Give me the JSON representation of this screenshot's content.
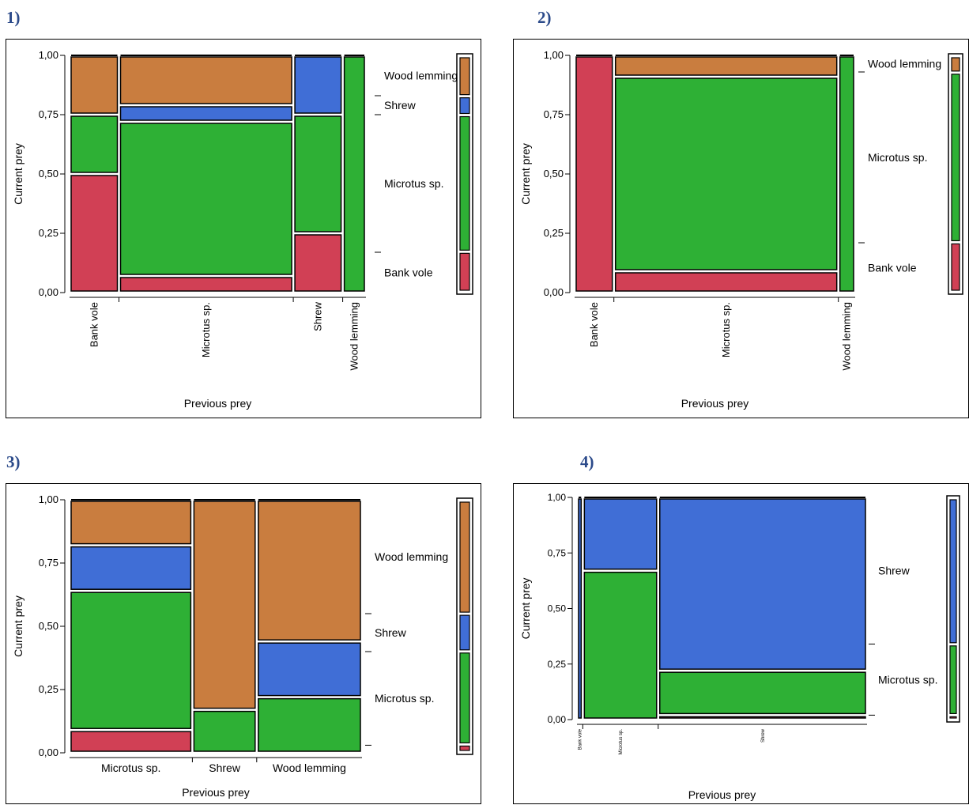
{
  "panels": [
    {
      "label": "1)",
      "chart_index": 0
    },
    {
      "label": "2)",
      "chart_index": 1
    },
    {
      "label": "3)",
      "chart_index": 2
    },
    {
      "label": "4)",
      "chart_index": 3
    }
  ],
  "colors": {
    "Bank vole": "#d14055",
    "Microtus sp.": "#2eb035",
    "Shrew": "#406ed6",
    "Wood lemming": "#c97d3f"
  },
  "chart_data": [
    {
      "type": "mosaic",
      "xlabel": "Previous prey",
      "ylabel": "Current prey",
      "ytick_labels": [
        "0,00",
        "0,25",
        "0,50",
        "0,75",
        "1,00"
      ],
      "ylim": [
        0,
        1
      ],
      "x_categories": [
        "Bank vole",
        "Microtus sp.",
        "Shrew",
        "Wood lemming"
      ],
      "x_widths": [
        0.17,
        0.6,
        0.17,
        0.08
      ],
      "stack_order": [
        "Bank vole",
        "Microtus sp.",
        "Shrew",
        "Wood lemming"
      ],
      "columns": [
        {
          "category": "Bank vole",
          "proportions": {
            "Bank vole": 0.5,
            "Microtus sp.": 0.25,
            "Shrew": 0.0,
            "Wood lemming": 0.25
          }
        },
        {
          "category": "Microtus sp.",
          "proportions": {
            "Bank vole": 0.07,
            "Microtus sp.": 0.65,
            "Shrew": 0.07,
            "Wood lemming": 0.21
          }
        },
        {
          "category": "Shrew",
          "proportions": {
            "Bank vole": 0.25,
            "Microtus sp.": 0.5,
            "Shrew": 0.25,
            "Wood lemming": 0.0
          }
        },
        {
          "category": "Wood lemming",
          "proportions": {
            "Bank vole": 0.0,
            "Microtus sp.": 1.0,
            "Shrew": 0.0,
            "Wood lemming": 0.0
          }
        }
      ],
      "marginal": {
        "Bank vole": 0.17,
        "Microtus sp.": 0.58,
        "Shrew": 0.08,
        "Wood lemming": 0.17
      },
      "legend_labels": [
        "Wood lemming",
        "Shrew",
        "Microtus sp.",
        "Bank vole"
      ]
    },
    {
      "type": "mosaic",
      "xlabel": "Previous prey",
      "ylabel": "Current prey",
      "ytick_labels": [
        "0,00",
        "0,25",
        "0,50",
        "0,75",
        "1,00"
      ],
      "ylim": [
        0,
        1
      ],
      "x_categories": [
        "Bank vole",
        "Microtus sp.",
        "Wood lemming"
      ],
      "x_widths": [
        0.14,
        0.8,
        0.06
      ],
      "stack_order": [
        "Bank vole",
        "Microtus sp.",
        "Wood lemming"
      ],
      "columns": [
        {
          "category": "Bank vole",
          "proportions": {
            "Bank vole": 1.0,
            "Microtus sp.": 0.0,
            "Wood lemming": 0.0
          }
        },
        {
          "category": "Microtus sp.",
          "proportions": {
            "Bank vole": 0.09,
            "Microtus sp.": 0.82,
            "Wood lemming": 0.09
          }
        },
        {
          "category": "Wood lemming",
          "proportions": {
            "Bank vole": 0.0,
            "Microtus sp.": 1.0,
            "Wood lemming": 0.0
          }
        }
      ],
      "marginal": {
        "Bank vole": 0.21,
        "Microtus sp.": 0.72,
        "Wood lemming": 0.07
      },
      "legend_labels": [
        "Wood lemming",
        "Microtus sp.",
        "Bank vole"
      ]
    },
    {
      "type": "mosaic",
      "xlabel": "Previous prey",
      "ylabel": "Current prey",
      "ytick_labels": [
        "0,00",
        "0,25",
        "0,50",
        "0,75",
        "1,00"
      ],
      "ylim": [
        0,
        1
      ],
      "x_categories": [
        "Microtus sp.",
        "Shrew",
        "Wood lemming"
      ],
      "x_widths": [
        0.42,
        0.22,
        0.36
      ],
      "stack_order": [
        "Bank vole",
        "Microtus sp.",
        "Shrew",
        "Wood lemming"
      ],
      "columns": [
        {
          "category": "Microtus sp.",
          "proportions": {
            "Bank vole": 0.09,
            "Microtus sp.": 0.55,
            "Shrew": 0.18,
            "Wood lemming": 0.18
          }
        },
        {
          "category": "Shrew",
          "proportions": {
            "Bank vole": 0.0,
            "Microtus sp.": 0.17,
            "Shrew": 0.0,
            "Wood lemming": 0.83
          }
        },
        {
          "category": "Wood lemming",
          "proportions": {
            "Bank vole": 0.0,
            "Microtus sp.": 0.22,
            "Shrew": 0.22,
            "Wood lemming": 0.56
          }
        }
      ],
      "marginal": {
        "Bank vole": 0.03,
        "Microtus sp.": 0.37,
        "Shrew": 0.15,
        "Wood lemming": 0.45
      },
      "legend_labels": [
        "Wood lemming",
        "Shrew",
        "Microtus sp."
      ]
    },
    {
      "type": "mosaic",
      "xlabel": "Previous prey",
      "ylabel": "Current prey",
      "ytick_labels": [
        "0,00",
        "0,25",
        "0,50",
        "0,75",
        "1,00"
      ],
      "ylim": [
        0,
        1
      ],
      "x_categories": [
        "Bank vole",
        "Microtus sp.",
        "Shrew"
      ],
      "x_widths": [
        0.02,
        0.26,
        0.72
      ],
      "stack_order": [
        "Bank vole",
        "Microtus sp.",
        "Shrew"
      ],
      "columns": [
        {
          "category": "Bank vole",
          "proportions": {
            "Bank vole": 0.0,
            "Microtus sp.": 0.0,
            "Shrew": 1.0
          }
        },
        {
          "category": "Microtus sp.",
          "proportions": {
            "Bank vole": 0.0,
            "Microtus sp.": 0.67,
            "Shrew": 0.33
          }
        },
        {
          "category": "Shrew",
          "proportions": {
            "Bank vole": 0.02,
            "Microtus sp.": 0.2,
            "Shrew": 0.78
          }
        }
      ],
      "marginal": {
        "Bank vole": 0.02,
        "Microtus sp.": 0.32,
        "Shrew": 0.66
      },
      "legend_labels": [
        "Shrew",
        "Microtus sp."
      ]
    }
  ]
}
